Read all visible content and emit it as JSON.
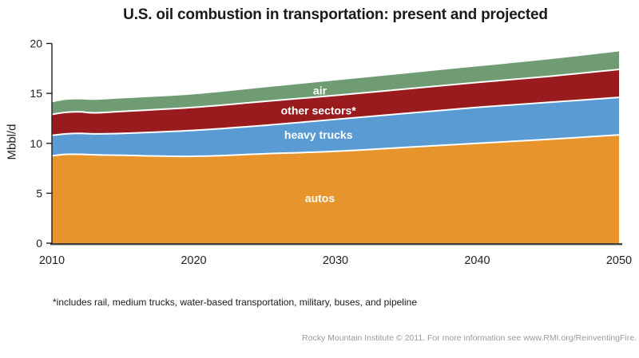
{
  "title": "U.S. oil combustion in transportation: present and projected",
  "footnote": "*includes rail, medium trucks, water-based transportation, military, buses, and pipeline",
  "credit": "Rocky Mountain Institute © 2011. For more information see www.RMI.org/ReinventingFire.",
  "colors": {
    "axis": "#3f3f41",
    "axis_shadow": "#b7b7b7",
    "separator": "#ffffff",
    "tick_text": "#231f20",
    "credit_text": "#9b9b9b"
  },
  "chart_data": {
    "type": "area",
    "stacked": true,
    "title": "U.S. oil combustion in transportation: present and projected",
    "xlabel": "",
    "ylabel": "Mbbl/d",
    "ylim": [
      0,
      20
    ],
    "xlim": [
      2010,
      2050
    ],
    "yticks": [
      0,
      5,
      10,
      15,
      20
    ],
    "xticks": [
      2010,
      2020,
      2030,
      2040,
      2050
    ],
    "grid": false,
    "legend": "inline-labels",
    "years": [
      2010,
      2011,
      2012,
      2013,
      2015,
      2020,
      2025,
      2030,
      2035,
      2040,
      2045,
      2050
    ],
    "series": [
      {
        "name": "autos",
        "label": "autos",
        "color": "#E8942D",
        "label_year": 2028.9,
        "label_value": 4.5,
        "values": [
          8.75,
          8.9,
          8.9,
          8.85,
          8.8,
          8.7,
          8.95,
          9.2,
          9.6,
          10.0,
          10.4,
          10.85
        ]
      },
      {
        "name": "heavy-trucks",
        "label": "heavy trucks",
        "color": "#5A9BD4",
        "label_year": 2028.8,
        "label_value": 10.85,
        "values": [
          2.05,
          2.05,
          2.1,
          2.1,
          2.2,
          2.6,
          2.85,
          3.2,
          3.4,
          3.6,
          3.7,
          3.75
        ]
      },
      {
        "name": "other-sectors",
        "label": "other sectors*",
        "color": "#9A1B1E",
        "label_year": 2028.8,
        "label_value": 13.3,
        "values": [
          2.1,
          2.15,
          2.15,
          2.1,
          2.2,
          2.3,
          2.4,
          2.4,
          2.45,
          2.5,
          2.6,
          2.8
        ]
      },
      {
        "name": "air",
        "label": "air",
        "color": "#6F9C72",
        "label_year": 2028.9,
        "label_value": 15.3,
        "values": [
          1.2,
          1.25,
          1.25,
          1.3,
          1.3,
          1.3,
          1.4,
          1.5,
          1.55,
          1.6,
          1.7,
          1.8
        ]
      }
    ]
  }
}
